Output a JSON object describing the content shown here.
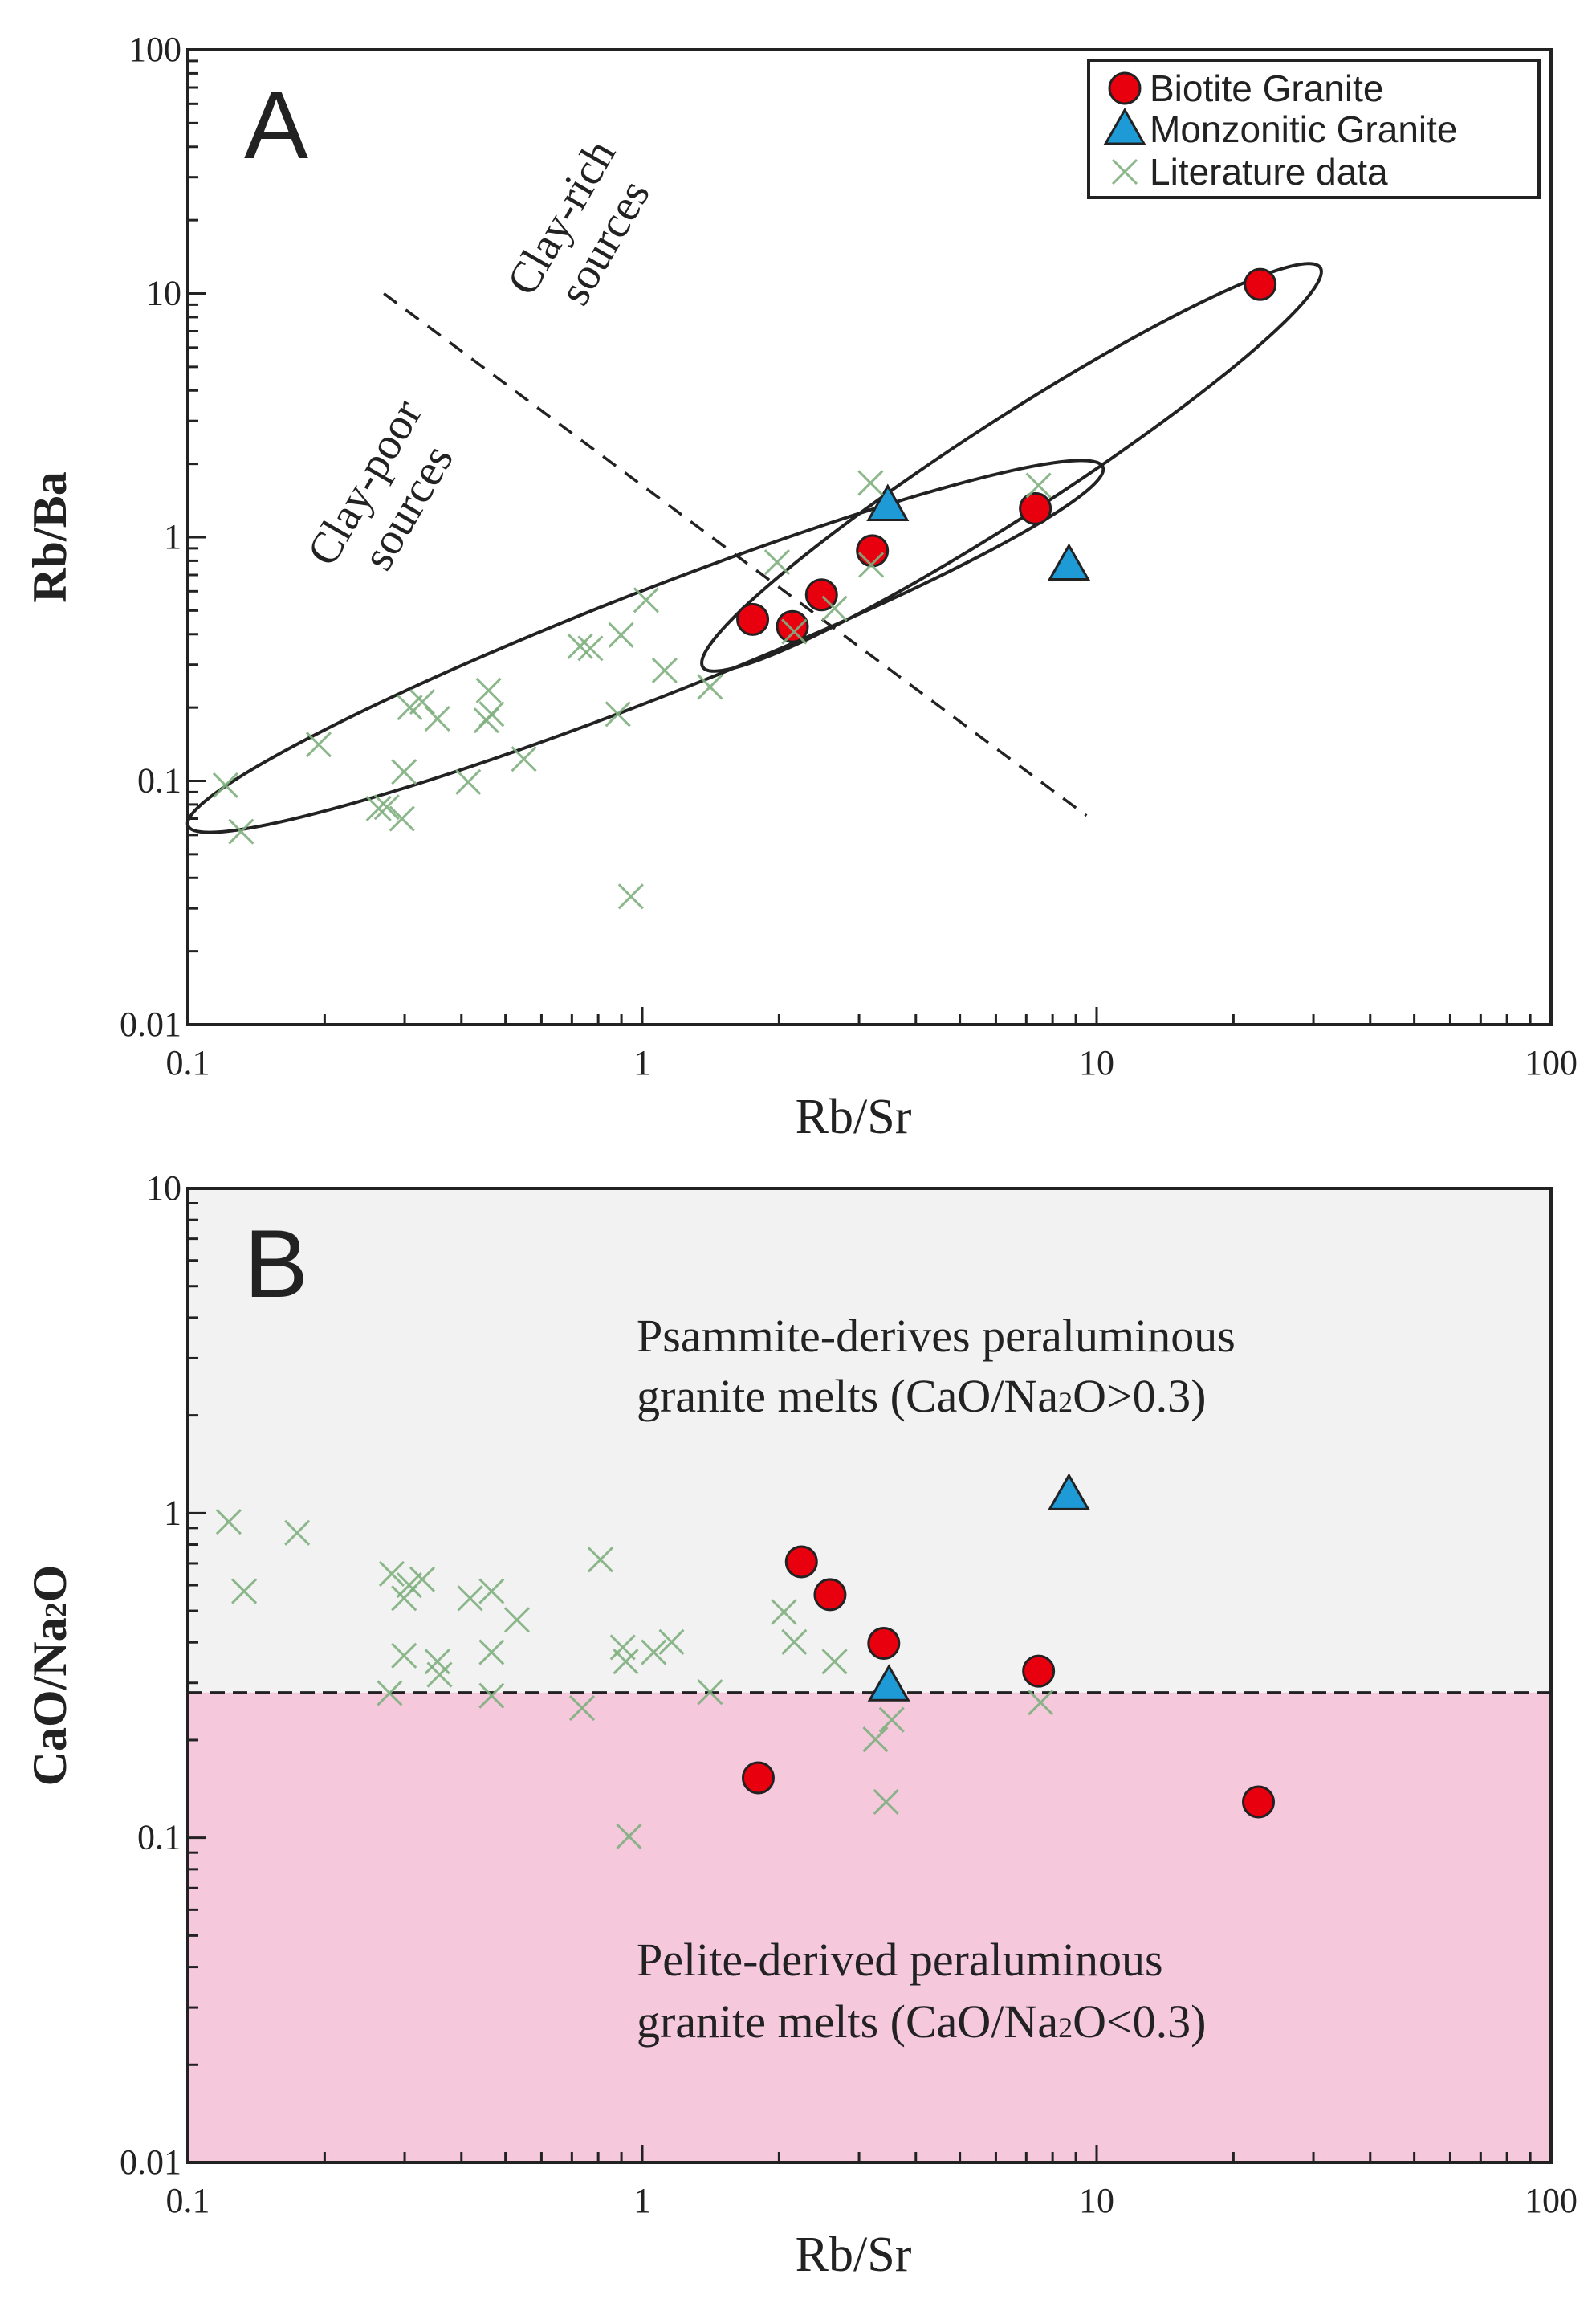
{
  "colors": {
    "biotite": "#e8000f",
    "monzonitic": "#1e9ad6",
    "literature": "#7fb07f",
    "psammite_region": "#f2f2f2",
    "pelite_region": "#f5c8dc"
  },
  "legend": {
    "items": [
      {
        "label": "Biotite Granite",
        "marker": "circle"
      },
      {
        "label": "Monzonitic Granite",
        "marker": "triangle"
      },
      {
        "label": "Literature data",
        "marker": "cross"
      }
    ]
  },
  "chart_data": [
    {
      "type": "scatter",
      "panel_label": "A",
      "xlabel": "Rb/Sr",
      "ylabel": "Rb/Ba",
      "xscale": "log",
      "yscale": "log",
      "xlim": [
        0.1,
        100
      ],
      "ylim": [
        0.01,
        100
      ],
      "xticks": [
        "0.1",
        "1",
        "10",
        "100"
      ],
      "yticks": [
        "0.01",
        "0.1",
        "1",
        "10",
        "100"
      ],
      "legend_position": "top-right",
      "annotations": [
        {
          "text_lines": [
            "Clay-rich",
            "sources"
          ]
        },
        {
          "text_lines": [
            "Clay-poor",
            "sources"
          ]
        }
      ],
      "divider_line": {
        "from": [
          0.27,
          10
        ],
        "to": [
          9.5,
          0.072
        ],
        "style": "dashed"
      },
      "series": [
        {
          "name": "Biotite Granite",
          "points": [
            [
              1.75,
              0.46
            ],
            [
              2.14,
              0.43
            ],
            [
              2.48,
              0.58
            ],
            [
              3.21,
              0.88
            ],
            [
              7.33,
              1.31
            ],
            [
              22.9,
              10.9
            ]
          ]
        },
        {
          "name": "Monzonitic Granite",
          "points": [
            [
              3.47,
              1.35
            ],
            [
              8.69,
              0.77
            ]
          ]
        },
        {
          "name": "Literature data",
          "points": [
            [
              0.121,
              0.096
            ],
            [
              0.131,
              0.062
            ],
            [
              0.194,
              0.141
            ],
            [
              0.274,
              0.078
            ],
            [
              0.263,
              0.077
            ],
            [
              0.296,
              0.07
            ],
            [
              0.299,
              0.109
            ],
            [
              0.308,
              0.2
            ],
            [
              0.328,
              0.211
            ],
            [
              0.354,
              0.18
            ],
            [
              0.414,
              0.099
            ],
            [
              0.459,
              0.235
            ],
            [
              0.466,
              0.188
            ],
            [
              0.454,
              0.177
            ],
            [
              0.549,
              0.123
            ],
            [
              0.73,
              0.357
            ],
            [
              0.769,
              0.35
            ],
            [
              0.898,
              0.397
            ],
            [
              0.884,
              0.188
            ],
            [
              1.02,
              0.552
            ],
            [
              1.12,
              0.284
            ],
            [
              1.41,
              0.243
            ],
            [
              0.944,
              0.0336
            ],
            [
              1.98,
              0.79
            ],
            [
              2.16,
              0.41
            ],
            [
              2.65,
              0.51
            ],
            [
              3.18,
              1.67
            ],
            [
              3.19,
              0.77
            ],
            [
              7.45,
              1.63
            ]
          ]
        }
      ]
    },
    {
      "type": "scatter",
      "panel_label": "B",
      "xlabel": "Rb/Sr",
      "ylabel": "CaO/Na2O",
      "xscale": "log",
      "yscale": "log",
      "xlim": [
        0.1,
        100
      ],
      "ylim": [
        0.01,
        10
      ],
      "xticks": [
        "0.1",
        "1",
        "10",
        "100"
      ],
      "yticks": [
        "0.01",
        "0.1",
        "1",
        "10"
      ],
      "threshold": {
        "y": 0.28,
        "style": "dashed"
      },
      "regions": [
        {
          "line1": "Psammite-derives peraluminous",
          "line2_pre": "granite melts (CaO/Na",
          "line2_sub": "2",
          "line2_post": "O>0.3)"
        },
        {
          "line1": "Pelite-derived peraluminous",
          "line2_pre": "granite melts (CaO/Na",
          "line2_sub": "2",
          "line2_post": "O<0.3)"
        }
      ],
      "series": [
        {
          "name": "Biotite Granite",
          "points": [
            [
              2.24,
              0.708
            ],
            [
              2.59,
              0.561
            ],
            [
              3.4,
              0.397
            ],
            [
              7.45,
              0.326
            ],
            [
              1.8,
              0.153
            ],
            [
              22.7,
              0.129
            ]
          ]
        },
        {
          "name": "Monzonitic Granite",
          "points": [
            [
              8.69,
              1.14
            ],
            [
              3.49,
              0.294
            ]
          ]
        },
        {
          "name": "Literature data",
          "points": [
            [
              0.123,
              0.94
            ],
            [
              0.133,
              0.575
            ],
            [
              0.174,
              0.87
            ],
            [
              0.281,
              0.65
            ],
            [
              0.299,
              0.547
            ],
            [
              0.307,
              0.6
            ],
            [
              0.328,
              0.625
            ],
            [
              0.299,
              0.364
            ],
            [
              0.354,
              0.349
            ],
            [
              0.358,
              0.318
            ],
            [
              0.278,
              0.279
            ],
            [
              0.418,
              0.547
            ],
            [
              0.466,
              0.575
            ],
            [
              0.466,
              0.373
            ],
            [
              0.466,
              0.274
            ],
            [
              0.53,
              0.469
            ],
            [
              0.737,
              0.251
            ],
            [
              0.809,
              0.719
            ],
            [
              0.906,
              0.386
            ],
            [
              0.92,
              0.349
            ],
            [
              1.06,
              0.373
            ],
            [
              1.16,
              0.401
            ],
            [
              1.41,
              0.281
            ],
            [
              0.935,
              0.101
            ],
            [
              2.05,
              0.496
            ],
            [
              2.16,
              0.401
            ],
            [
              2.65,
              0.349
            ],
            [
              3.26,
              0.201
            ],
            [
              3.54,
              0.231
            ],
            [
              3.44,
              0.129
            ],
            [
              7.53,
              0.261
            ]
          ]
        }
      ]
    }
  ]
}
